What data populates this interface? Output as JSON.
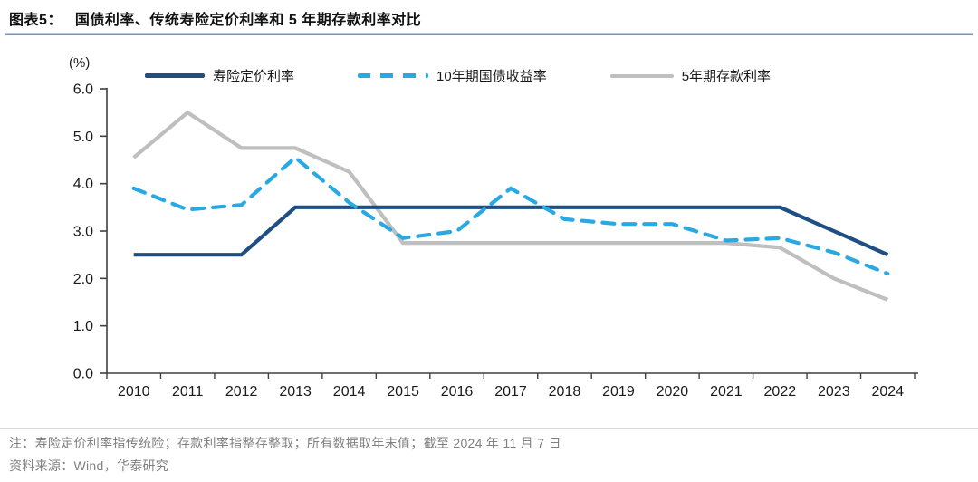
{
  "header": {
    "figure_label": "图表5：",
    "title": "国债利率、传统寿险定价利率和 5 年期存款利率对比"
  },
  "chart_data": {
    "type": "line",
    "title": "国债利率、传统寿险定价利率和 5 年期存款利率对比",
    "unit_label": "(%)",
    "xlabel": "",
    "ylabel": "(%)",
    "ylim": [
      0,
      6
    ],
    "ytick_step": 1,
    "grid": false,
    "legend_position": "top",
    "categories": [
      "2010",
      "2011",
      "2012",
      "2013",
      "2014",
      "2015",
      "2016",
      "2017",
      "2018",
      "2019",
      "2020",
      "2021",
      "2022",
      "2023",
      "2024"
    ],
    "series": [
      {
        "name": "寿险定价利率",
        "color": "#1F4E82",
        "style": "solid",
        "layer": 2,
        "values": [
          2.5,
          2.5,
          2.5,
          3.5,
          3.5,
          3.5,
          3.5,
          3.5,
          3.5,
          3.5,
          3.5,
          3.5,
          3.5,
          3.0,
          2.5
        ]
      },
      {
        "name": "10年期国债收益率",
        "color": "#29A9E1",
        "style": "dashed",
        "layer": 3,
        "values": [
          3.9,
          3.45,
          3.55,
          4.55,
          3.6,
          2.85,
          3.0,
          3.9,
          3.25,
          3.15,
          3.15,
          2.8,
          2.85,
          2.55,
          2.1
        ]
      },
      {
        "name": "5年期存款利率",
        "color": "#BFBFBF",
        "style": "solid",
        "layer": 1,
        "values": [
          4.55,
          5.5,
          4.75,
          4.75,
          4.25,
          2.75,
          2.75,
          2.75,
          2.75,
          2.75,
          2.75,
          2.75,
          2.65,
          2.0,
          1.55
        ]
      }
    ]
  },
  "footer": {
    "note": "注：寿险定价利率指传统险；存款利率指整存整取；所有数据取年末值；截至 2024 年 11 月 7 日",
    "source": "资料来源：Wind，华泰研究"
  }
}
